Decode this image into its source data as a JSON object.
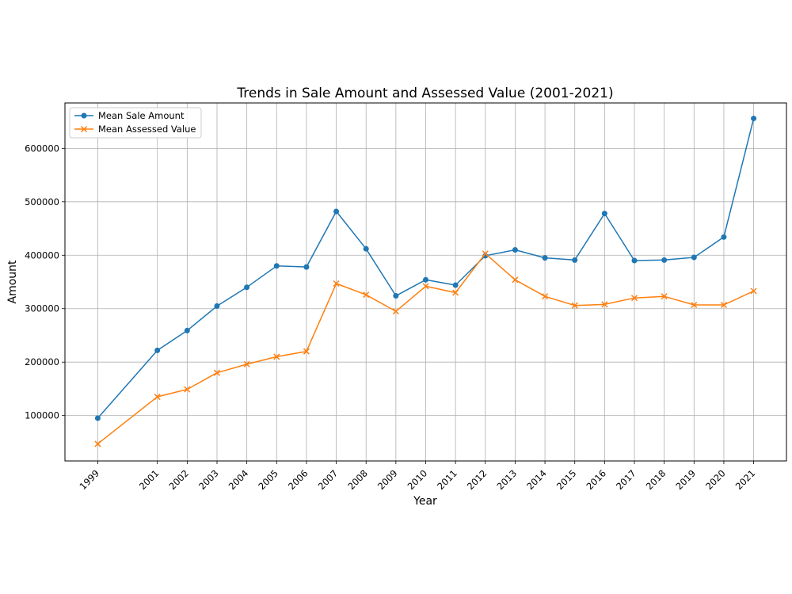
{
  "chart_data": {
    "type": "line",
    "title": "Trends in Sale Amount and Assessed Value (2001-2021)",
    "xlabel": "Year",
    "ylabel": "Amount",
    "x": [
      1999,
      2001,
      2002,
      2003,
      2004,
      2005,
      2006,
      2007,
      2008,
      2009,
      2010,
      2011,
      2012,
      2013,
      2014,
      2015,
      2016,
      2017,
      2018,
      2019,
      2020,
      2021
    ],
    "xticks": [
      "1999",
      "2001",
      "2002",
      "2003",
      "2004",
      "2005",
      "2006",
      "2007",
      "2008",
      "2009",
      "2010",
      "2011",
      "2012",
      "2013",
      "2014",
      "2015",
      "2016",
      "2017",
      "2018",
      "2019",
      "2020",
      "2021"
    ],
    "yticks": [
      100000,
      200000,
      300000,
      400000,
      500000,
      600000
    ],
    "ytick_labels": [
      "100000",
      "200000",
      "300000",
      "400000",
      "500000",
      "600000"
    ],
    "xlim": [
      1997.9,
      2022.1
    ],
    "ylim": [
      15000,
      685000
    ],
    "grid": true,
    "legend_position": "top-left",
    "series": [
      {
        "name": "Mean Sale Amount",
        "color": "#1f77b4",
        "marker": "circle",
        "values": [
          95000,
          222000,
          259000,
          305000,
          340000,
          380000,
          378000,
          482000,
          412000,
          324000,
          354000,
          344000,
          399000,
          410000,
          395000,
          391000,
          478000,
          390000,
          391000,
          396000,
          434000,
          656000
        ]
      },
      {
        "name": "Mean Assessed Value",
        "color": "#ff7f0e",
        "marker": "x",
        "values": [
          47000,
          135000,
          149000,
          180000,
          196000,
          210000,
          220000,
          347000,
          326000,
          295000,
          342000,
          330000,
          403000,
          354000,
          323000,
          306000,
          308000,
          320000,
          323000,
          307000,
          307000,
          333000
        ]
      }
    ]
  }
}
